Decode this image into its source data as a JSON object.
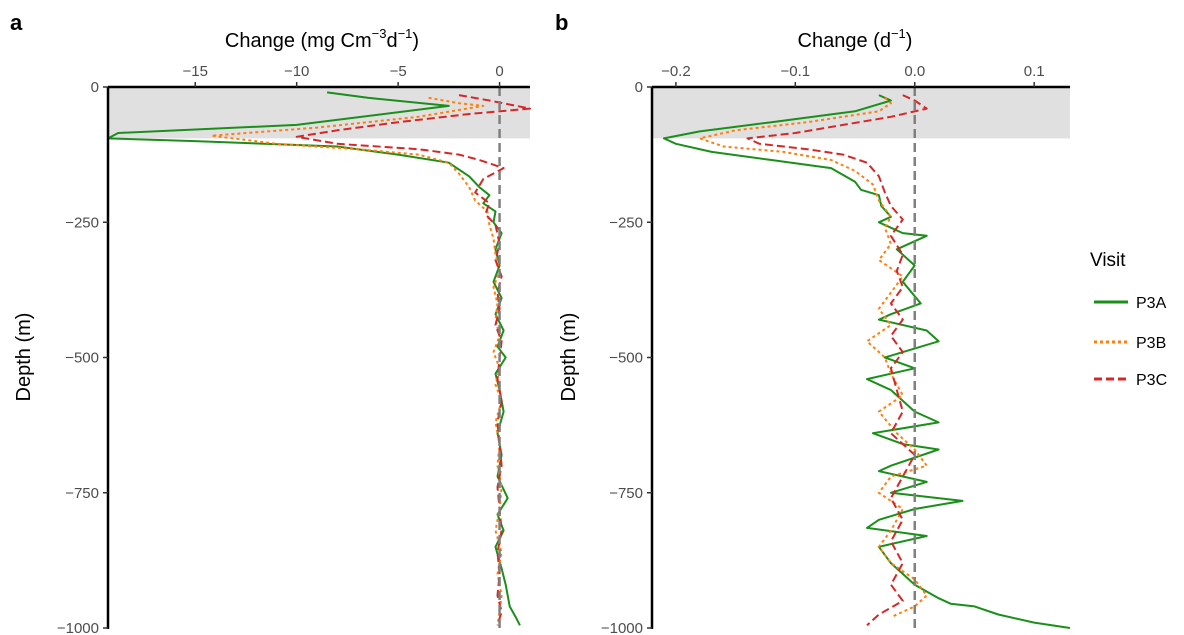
{
  "legend": {
    "title": "Visit",
    "entries": [
      {
        "name": "P3A",
        "color": "#1a8f1a",
        "dash": "solid"
      },
      {
        "name": "P3B",
        "color": "#ff7f0e",
        "dash": "dotted"
      },
      {
        "name": "P3C",
        "color": "#d62728",
        "dash": "dashed"
      }
    ]
  },
  "colors": {
    "shade": "#e0e0e0",
    "zero_line": "#808080",
    "axis": "#000000"
  },
  "chart_data": [
    {
      "panel": "a",
      "type": "line",
      "xlabel": {
        "main": "Change (mg Cm",
        "sup1": "−3",
        "mid": "d",
        "sup2": "−1",
        "end": ")"
      },
      "ylabel": "Depth (m)",
      "xlim": [
        -19.3,
        1.5
      ],
      "ylim": [
        -1000,
        0
      ],
      "xticks": [
        -15,
        -10,
        -5,
        0
      ],
      "xtick_labels": [
        "−15",
        "−10",
        "−5",
        "0"
      ],
      "yticks": [
        0,
        -250,
        -500,
        -750,
        -1000
      ],
      "ytick_labels": [
        "0",
        "−250",
        "−500",
        "−750",
        "−1000"
      ],
      "shaded_depth": [
        -95,
        0
      ],
      "zero_line": 0,
      "series": [
        {
          "name": "P3A",
          "points": [
            [
              -8.5,
              -10
            ],
            [
              -6.5,
              -20
            ],
            [
              -2.5,
              -35
            ],
            [
              -10,
              -70
            ],
            [
              -18.8,
              -85
            ],
            [
              -19.3,
              -95
            ],
            [
              -15,
              -100
            ],
            [
              -8,
              -110
            ],
            [
              -5,
              -125
            ],
            [
              -2.5,
              -140
            ],
            [
              -1.5,
              -165
            ],
            [
              -1.0,
              -185
            ],
            [
              -0.5,
              -200
            ],
            [
              -0.8,
              -215
            ],
            [
              -0.2,
              -230
            ],
            [
              -0.3,
              -250
            ],
            [
              0.1,
              -270
            ],
            [
              -0.2,
              -300
            ],
            [
              0.0,
              -330
            ],
            [
              -0.3,
              -360
            ],
            [
              0.1,
              -390
            ],
            [
              -0.2,
              -420
            ],
            [
              0.2,
              -450
            ],
            [
              -0.1,
              -480
            ],
            [
              0.3,
              -500
            ],
            [
              -0.2,
              -530
            ],
            [
              0.0,
              -560
            ],
            [
              0.2,
              -600
            ],
            [
              -0.1,
              -640
            ],
            [
              0.1,
              -680
            ],
            [
              -0.1,
              -720
            ],
            [
              0.4,
              -760
            ],
            [
              -0.1,
              -790
            ],
            [
              0.2,
              -820
            ],
            [
              -0.2,
              -850
            ],
            [
              0.1,
              -890
            ],
            [
              0.3,
              -920
            ],
            [
              0.5,
              -960
            ],
            [
              0.8,
              -980
            ],
            [
              1.0,
              -995
            ]
          ]
        },
        {
          "name": "P3B",
          "points": [
            [
              -3.5,
              -20
            ],
            [
              -2.0,
              -30
            ],
            [
              -0.8,
              -35
            ],
            [
              -4,
              -55
            ],
            [
              -9,
              -75
            ],
            [
              -14.2,
              -90
            ],
            [
              -11,
              -105
            ],
            [
              -7,
              -115
            ],
            [
              -4,
              -125
            ],
            [
              -2.5,
              -140
            ],
            [
              -2.0,
              -160
            ],
            [
              -1.5,
              -185
            ],
            [
              -1.2,
              -210
            ],
            [
              -0.6,
              -230
            ],
            [
              -0.5,
              -255
            ],
            [
              -0.3,
              -280
            ],
            [
              -0.2,
              -310
            ],
            [
              0.0,
              -340
            ],
            [
              -0.3,
              -370
            ],
            [
              -0.1,
              -400
            ],
            [
              -0.2,
              -430
            ],
            [
              0.0,
              -460
            ],
            [
              -0.3,
              -490
            ],
            [
              0.0,
              -520
            ],
            [
              -0.2,
              -550
            ],
            [
              0.1,
              -580
            ],
            [
              -0.2,
              -620
            ],
            [
              0.0,
              -660
            ],
            [
              -0.1,
              -700
            ],
            [
              0.1,
              -740
            ],
            [
              0.0,
              -780
            ],
            [
              -0.2,
              -820
            ],
            [
              0.1,
              -860
            ],
            [
              -0.1,
              -900
            ],
            [
              0.1,
              -940
            ],
            [
              0.0,
              -970
            ],
            [
              -0.1,
              -995
            ]
          ]
        },
        {
          "name": "P3C",
          "points": [
            [
              -2,
              -15
            ],
            [
              -0.5,
              -25
            ],
            [
              1.5,
              -40
            ],
            [
              -1.5,
              -50
            ],
            [
              -5,
              -65
            ],
            [
              -8,
              -80
            ],
            [
              -10,
              -92
            ],
            [
              -8,
              -105
            ],
            [
              -4,
              -115
            ],
            [
              -2,
              -125
            ],
            [
              -1,
              -135
            ],
            [
              0.2,
              -150
            ],
            [
              -0.8,
              -170
            ],
            [
              -1.2,
              -195
            ],
            [
              -0.5,
              -215
            ],
            [
              -0.7,
              -235
            ],
            [
              -0.2,
              -255
            ],
            [
              0.0,
              -290
            ],
            [
              -0.2,
              -320
            ],
            [
              0.1,
              -350
            ],
            [
              -0.1,
              -380
            ],
            [
              0.0,
              -410
            ],
            [
              -0.2,
              -440
            ],
            [
              0.1,
              -470
            ],
            [
              0.0,
              -500
            ],
            [
              -0.1,
              -540
            ],
            [
              0.1,
              -580
            ],
            [
              -0.1,
              -620
            ],
            [
              0.0,
              -660
            ],
            [
              0.1,
              -700
            ],
            [
              -0.1,
              -740
            ],
            [
              0.0,
              -780
            ],
            [
              0.1,
              -820
            ],
            [
              -0.1,
              -860
            ],
            [
              0.0,
              -900
            ],
            [
              -0.1,
              -940
            ],
            [
              0.1,
              -970
            ],
            [
              -0.1,
              -995
            ]
          ]
        }
      ]
    },
    {
      "panel": "b",
      "type": "line",
      "xlabel": {
        "main": "Change (d",
        "sup1": "−1",
        "mid": "",
        "sup2": "",
        "end": ")"
      },
      "ylabel": "Depth (m)",
      "xlim": [
        -0.22,
        0.13
      ],
      "ylim": [
        -1000,
        0
      ],
      "xticks": [
        -0.2,
        -0.1,
        0.0,
        0.1
      ],
      "xtick_labels": [
        "−0.2",
        "−0.1",
        "0.0",
        "0.1"
      ],
      "yticks": [
        0,
        -250,
        -500,
        -750,
        -1000
      ],
      "ytick_labels": [
        "0",
        "−250",
        "−500",
        "−750",
        "−1000"
      ],
      "shaded_depth": [
        -95,
        0
      ],
      "zero_line": 0,
      "series": [
        {
          "name": "P3A",
          "points": [
            [
              -0.03,
              -15
            ],
            [
              -0.02,
              -25
            ],
            [
              -0.05,
              -45
            ],
            [
              -0.12,
              -65
            ],
            [
              -0.18,
              -82
            ],
            [
              -0.21,
              -95
            ],
            [
              -0.2,
              -105
            ],
            [
              -0.17,
              -120
            ],
            [
              -0.12,
              -135
            ],
            [
              -0.07,
              -150
            ],
            [
              -0.05,
              -175
            ],
            [
              -0.045,
              -190
            ],
            [
              -0.03,
              -200
            ],
            [
              -0.028,
              -220
            ],
            [
              -0.02,
              -240
            ],
            [
              -0.03,
              -250
            ],
            [
              -0.01,
              -270
            ],
            [
              0.01,
              -275
            ],
            [
              -0.015,
              -300
            ],
            [
              0.0,
              -330
            ],
            [
              -0.01,
              -360
            ],
            [
              0.005,
              -400
            ],
            [
              -0.02,
              -420
            ],
            [
              -0.03,
              -430
            ],
            [
              0.01,
              -450
            ],
            [
              0.02,
              -470
            ],
            [
              -0.025,
              -500
            ],
            [
              0.0,
              -520
            ],
            [
              -0.04,
              -540
            ],
            [
              -0.02,
              -560
            ],
            [
              0.0,
              -600
            ],
            [
              0.02,
              -620
            ],
            [
              -0.035,
              -640
            ],
            [
              -0.01,
              -660
            ],
            [
              0.02,
              -670
            ],
            [
              -0.02,
              -700
            ],
            [
              -0.03,
              -710
            ],
            [
              0.01,
              -730
            ],
            [
              -0.02,
              -750
            ],
            [
              0.04,
              -765
            ],
            [
              0.0,
              -780
            ],
            [
              -0.03,
              -800
            ],
            [
              -0.04,
              -815
            ],
            [
              0.01,
              -830
            ],
            [
              -0.03,
              -850
            ],
            [
              -0.02,
              -880
            ],
            [
              -0.01,
              -900
            ],
            [
              0.0,
              -920
            ],
            [
              0.02,
              -945
            ],
            [
              0.03,
              -955
            ],
            [
              0.05,
              -960
            ],
            [
              0.07,
              -975
            ],
            [
              0.1,
              -990
            ],
            [
              0.13,
              -1000
            ]
          ]
        },
        {
          "name": "P3B",
          "points": [
            [
              -0.025,
              -20
            ],
            [
              -0.02,
              -30
            ],
            [
              -0.03,
              -45
            ],
            [
              -0.09,
              -65
            ],
            [
              -0.15,
              -80
            ],
            [
              -0.18,
              -95
            ],
            [
              -0.16,
              -110
            ],
            [
              -0.11,
              -120
            ],
            [
              -0.07,
              -135
            ],
            [
              -0.05,
              -155
            ],
            [
              -0.035,
              -180
            ],
            [
              -0.03,
              -210
            ],
            [
              -0.02,
              -240
            ],
            [
              -0.025,
              -260
            ],
            [
              -0.02,
              -290
            ],
            [
              -0.03,
              -320
            ],
            [
              -0.01,
              -350
            ],
            [
              -0.02,
              -380
            ],
            [
              -0.03,
              -410
            ],
            [
              -0.02,
              -440
            ],
            [
              -0.04,
              -470
            ],
            [
              -0.025,
              -500
            ],
            [
              -0.02,
              -530
            ],
            [
              -0.01,
              -570
            ],
            [
              -0.03,
              -600
            ],
            [
              -0.015,
              -640
            ],
            [
              0.0,
              -670
            ],
            [
              0.01,
              -700
            ],
            [
              -0.02,
              -720
            ],
            [
              -0.03,
              -750
            ],
            [
              -0.01,
              -780
            ],
            [
              -0.02,
              -820
            ],
            [
              -0.03,
              -850
            ],
            [
              -0.02,
              -880
            ],
            [
              0.0,
              -910
            ],
            [
              0.01,
              -940
            ],
            [
              0.0,
              -960
            ],
            [
              -0.02,
              -980
            ]
          ]
        },
        {
          "name": "P3C",
          "points": [
            [
              -0.01,
              -15
            ],
            [
              0.0,
              -25
            ],
            [
              0.01,
              -40
            ],
            [
              -0.02,
              -55
            ],
            [
              -0.06,
              -70
            ],
            [
              -0.1,
              -85
            ],
            [
              -0.14,
              -95
            ],
            [
              -0.13,
              -105
            ],
            [
              -0.09,
              -115
            ],
            [
              -0.06,
              -125
            ],
            [
              -0.04,
              -140
            ],
            [
              -0.03,
              -165
            ],
            [
              -0.025,
              -195
            ],
            [
              -0.02,
              -220
            ],
            [
              -0.01,
              -245
            ],
            [
              -0.02,
              -275
            ],
            [
              -0.01,
              -310
            ],
            [
              -0.015,
              -340
            ],
            [
              -0.01,
              -370
            ],
            [
              -0.02,
              -400
            ],
            [
              -0.01,
              -430
            ],
            [
              -0.02,
              -460
            ],
            [
              -0.01,
              -490
            ],
            [
              -0.02,
              -520
            ],
            [
              -0.015,
              -560
            ],
            [
              -0.01,
              -600
            ],
            [
              -0.02,
              -640
            ],
            [
              0.0,
              -680
            ],
            [
              -0.01,
              -720
            ],
            [
              -0.02,
              -760
            ],
            [
              -0.01,
              -800
            ],
            [
              -0.02,
              -840
            ],
            [
              -0.01,
              -880
            ],
            [
              -0.02,
              -920
            ],
            [
              -0.01,
              -950
            ],
            [
              -0.03,
              -975
            ],
            [
              -0.04,
              -995
            ]
          ]
        }
      ]
    }
  ]
}
